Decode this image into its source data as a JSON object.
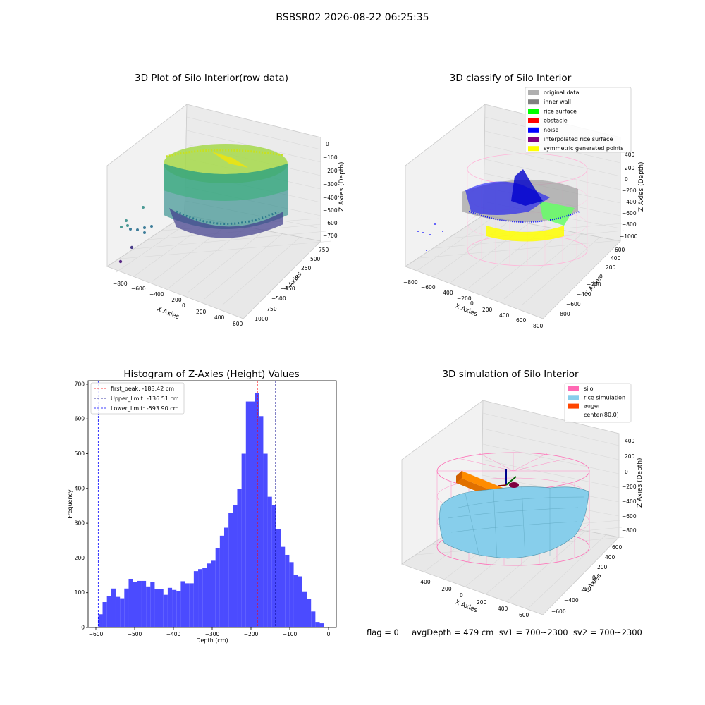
{
  "figure_title": "BSBSR02 2026-08-22 06:25:35",
  "panels": {
    "raw": {
      "title": "3D Plot of Silo Interior(row data)",
      "xlabel": "X Axies",
      "ylabel": "Y Axies",
      "zlabel": "Z Axies (Depth)",
      "xticks": [
        "−800",
        "−600",
        "−400",
        "−200",
        "0",
        "200",
        "400",
        "600"
      ],
      "yticks": [
        "−1000",
        "−750",
        "−500",
        "−250",
        "0",
        "250",
        "500",
        "750"
      ],
      "zticks": [
        "0",
        "−100",
        "−200",
        "−300",
        "−400",
        "−500",
        "−600",
        "−700"
      ]
    },
    "classify": {
      "title": "3D classify of Silo Interior",
      "xlabel": "X Axies",
      "ylabel": "Y Axies",
      "zlabel": "Z Axies (Depth)",
      "xticks": [
        "−800",
        "−600",
        "−400",
        "−200",
        "0",
        "200",
        "400",
        "600",
        "800"
      ],
      "yticks": [
        "−800",
        "−600",
        "−400",
        "−200",
        "0",
        "200",
        "400",
        "600"
      ],
      "zticks": [
        "400",
        "200",
        "0",
        "−200",
        "−400",
        "−600",
        "−800",
        "−1000"
      ],
      "legend": [
        {
          "label": "original data",
          "color": "#b0b0b0"
        },
        {
          "label": "inner wall",
          "color": "#808080"
        },
        {
          "label": "rice surface",
          "color": "#00ff00"
        },
        {
          "label": "obstacle",
          "color": "#ff0000"
        },
        {
          "label": "noise",
          "color": "#0000ff"
        },
        {
          "label": "interpolated rice surface",
          "color": "#800080"
        },
        {
          "label": "symmetric generated points",
          "color": "#ffff00"
        }
      ]
    },
    "simulation": {
      "title": "3D simulation of Silo Interior",
      "xlabel": "X Axies",
      "ylabel": "Y Axies",
      "zlabel": "Z Axies (Depth)",
      "xticks": [
        "−400",
        "−200",
        "0",
        "200",
        "400",
        "600"
      ],
      "yticks": [
        "−600",
        "−400",
        "−200",
        "0",
        "200",
        "400",
        "600"
      ],
      "zticks": [
        "400",
        "200",
        "0",
        "−200",
        "−400",
        "−600",
        "−800"
      ],
      "legend": [
        {
          "label": "silo",
          "color": "#ff69b4"
        },
        {
          "label": "rice simulation",
          "color": "#87ceeb"
        },
        {
          "label": "auger",
          "color": "#ff4500"
        },
        {
          "label": "center(80,0)",
          "color": "#ffffff"
        }
      ]
    }
  },
  "footer": "flag = 0     avgDepth = 479 cm  sv1 = 700~2300  sv2 = 700~2300",
  "chart_data": [
    {
      "type": "bar",
      "title": "Histogram of Z-Axies (Height) Values",
      "xlabel": "Depth (cm)",
      "ylabel": "Frequency",
      "xlim": [
        -620,
        20
      ],
      "ylim": [
        0,
        710
      ],
      "xticks": [
        -600,
        -500,
        -400,
        -300,
        -200,
        -100,
        0
      ],
      "xtick_labels": [
        "−600",
        "−500",
        "−400",
        "−300",
        "−200",
        "−100",
        "0"
      ],
      "yticks": [
        0,
        100,
        200,
        300,
        400,
        500,
        600,
        700
      ],
      "bin_start": -593.9,
      "bin_width": 11.2,
      "bar_color": "#4b4bff",
      "values": [
        38,
        73,
        90,
        112,
        88,
        84,
        112,
        140,
        130,
        134,
        134,
        118,
        130,
        110,
        110,
        94,
        114,
        108,
        104,
        133,
        127,
        127,
        162,
        168,
        172,
        184,
        192,
        228,
        264,
        287,
        330,
        352,
        398,
        500,
        650,
        650,
        675,
        608,
        500,
        376,
        352,
        283,
        232,
        209,
        188,
        152,
        147,
        102,
        82,
        46,
        16,
        12
      ],
      "lines": [
        {
          "label": "first_peak: -183.42 cm",
          "x": -183.42,
          "color": "#ff0000"
        },
        {
          "label": "Upper_limit: -136.51 cm",
          "x": -136.51,
          "color": "#00008b"
        },
        {
          "label": "Lower_limit: -593.90 cm",
          "x": -593.9,
          "color": "#0000ff"
        }
      ]
    }
  ]
}
